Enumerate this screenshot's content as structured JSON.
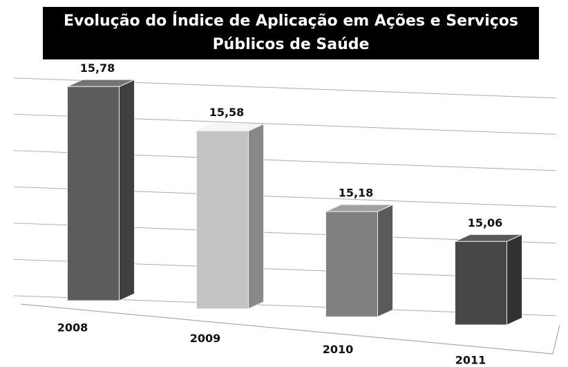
{
  "chart_data": {
    "type": "bar3d",
    "title": "Evolução do Índice de Aplicação em Ações e Serviços Públicos de Saúde",
    "categories": [
      "2008",
      "2009",
      "2010",
      "2011"
    ],
    "values": [
      15.78,
      15.58,
      15.18,
      15.06
    ],
    "value_labels": [
      "15,78",
      "15,58",
      "15,18",
      "15,06"
    ],
    "colors": [
      "#5c5c5c",
      "#c4c4c4",
      "#808080",
      "#474747"
    ],
    "ylim": [
      14.6,
      15.8
    ],
    "yticks": [
      14.6,
      14.8,
      15,
      15.2,
      15.4,
      15.6,
      15.8
    ],
    "grid": true
  }
}
